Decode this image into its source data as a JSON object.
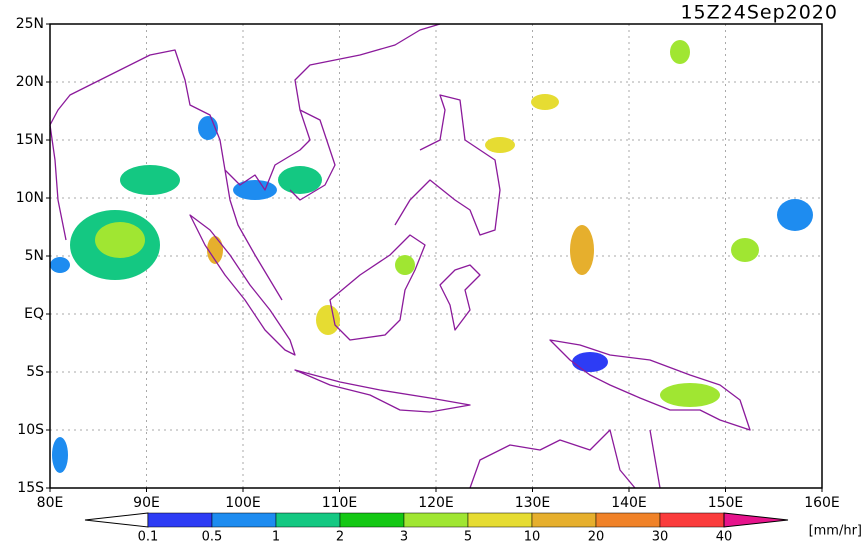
{
  "map": {
    "title": "15Z24Sep2020",
    "lat_labels": [
      "25N",
      "20N",
      "15N",
      "10N",
      "5N",
      "EQ",
      "5S",
      "10S",
      "15S"
    ],
    "lon_labels": [
      "80E",
      "90E",
      "100E",
      "110E",
      "120E",
      "130E",
      "140E",
      "150E",
      "160E"
    ],
    "colorbar": {
      "labels": [
        "0.1",
        "0.5",
        "1",
        "2",
        "3",
        "5",
        "10",
        "20",
        "30",
        "40"
      ],
      "unit": "[mm/hr]"
    }
  }
}
